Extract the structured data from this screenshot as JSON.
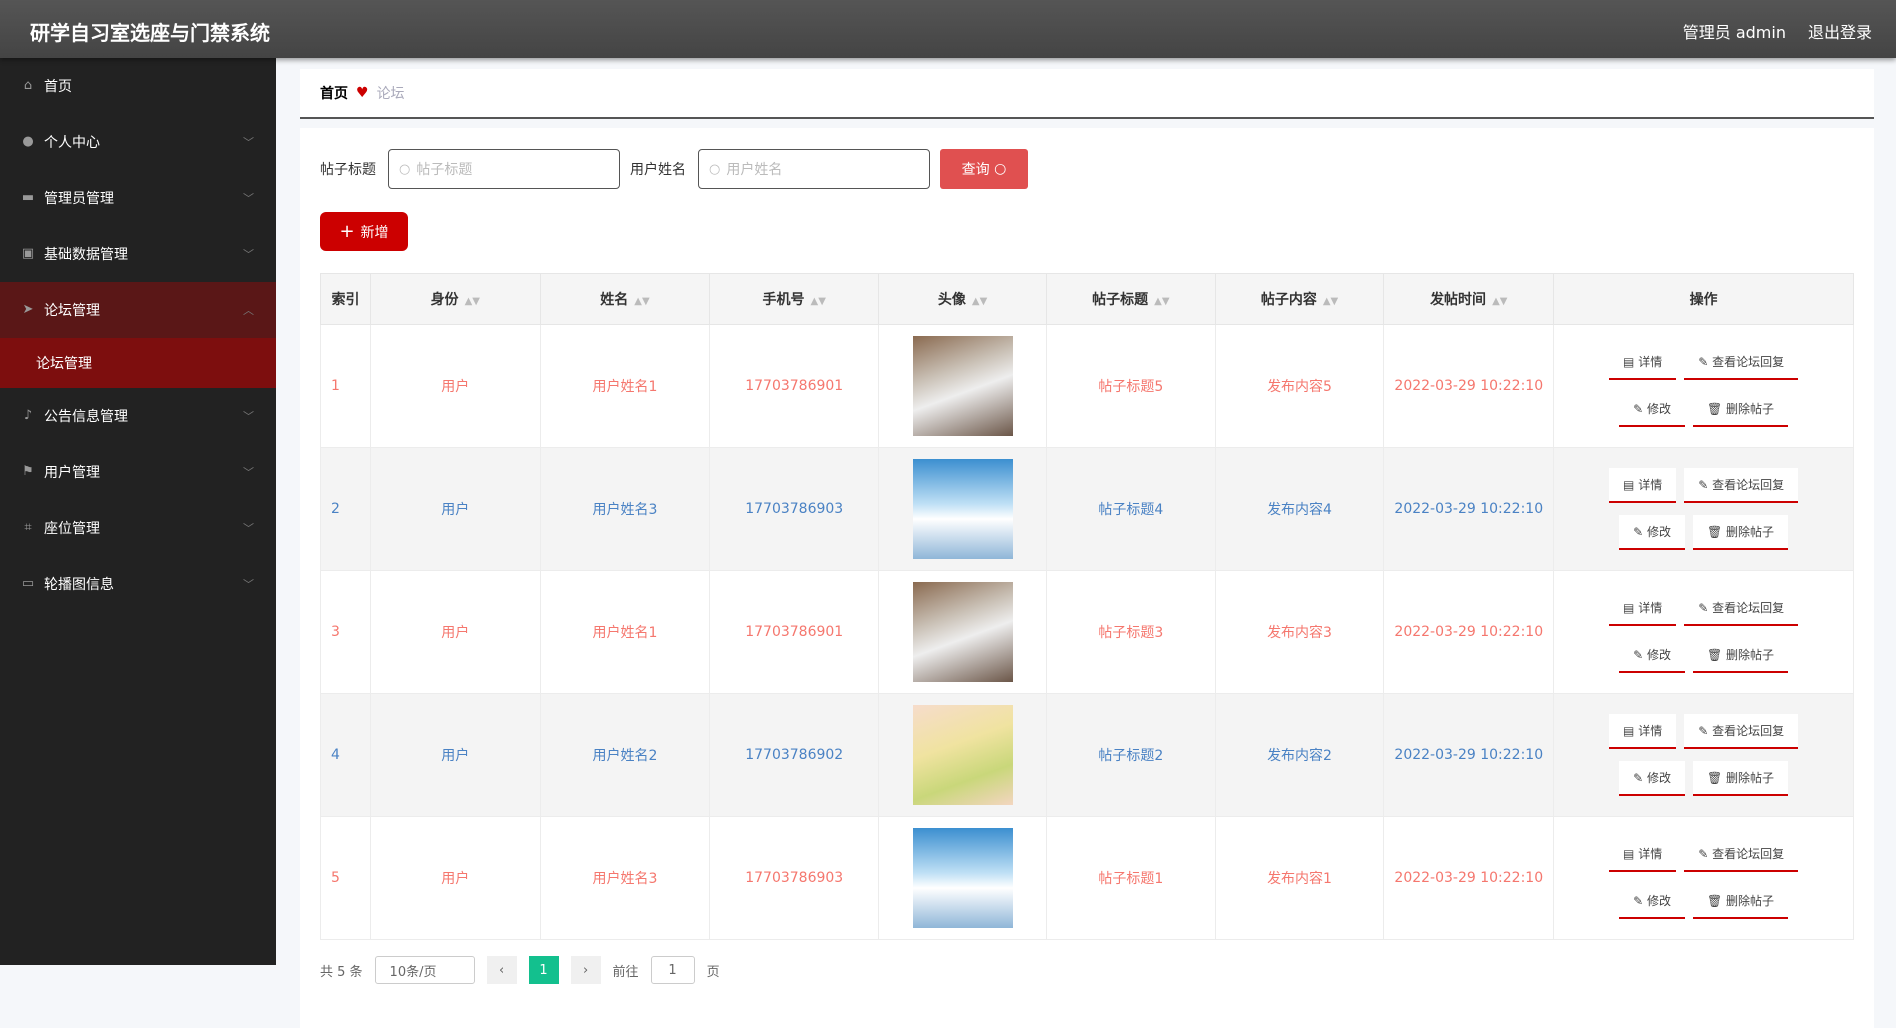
{
  "header": {
    "title": "研学自习室选座与门禁系统",
    "user": "管理员 admin",
    "logout": "退出登录"
  },
  "sidebar": {
    "items": [
      {
        "label": "首页",
        "icon": "home-icon"
      },
      {
        "label": "个人中心",
        "icon": "user-icon"
      },
      {
        "label": "管理员管理",
        "icon": "monitor-icon"
      },
      {
        "label": "基础数据管理",
        "icon": "clipboard-icon"
      },
      {
        "label": "论坛管理",
        "icon": "send-icon",
        "open": true
      },
      {
        "label": "公告信息管理",
        "icon": "mic-icon"
      },
      {
        "label": "用户管理",
        "icon": "flag-icon"
      },
      {
        "label": "座位管理",
        "icon": "crop-icon"
      },
      {
        "label": "轮播图信息",
        "icon": "screen-icon"
      }
    ],
    "submenu": "论坛管理"
  },
  "breadcrumb": {
    "home": "首页",
    "current": "论坛"
  },
  "search": {
    "title_label": "帖子标题",
    "title_placeholder": "帖子标题",
    "name_label": "用户姓名",
    "name_placeholder": "用户姓名",
    "query": "查询"
  },
  "add_button": "新增",
  "table": {
    "columns": [
      "索引",
      "身份",
      "姓名",
      "手机号",
      "头像",
      "帖子标题",
      "帖子内容",
      "发帖时间",
      "操作"
    ],
    "actions": [
      "详情",
      "查看论坛回复",
      "修改",
      "删除帖子"
    ],
    "rows": [
      {
        "index": "1",
        "role": "用户",
        "name": "用户姓名1",
        "phone": "17703786901",
        "avatar": "cat",
        "title": "帖子标题5",
        "content": "发布内容5",
        "time": "2022-03-29 10:22:10"
      },
      {
        "index": "2",
        "role": "用户",
        "name": "用户姓名3",
        "phone": "17703786903",
        "avatar": "boy",
        "title": "帖子标题4",
        "content": "发布内容4",
        "time": "2022-03-29 10:22:10"
      },
      {
        "index": "3",
        "role": "用户",
        "name": "用户姓名1",
        "phone": "17703786901",
        "avatar": "cat",
        "title": "帖子标题3",
        "content": "发布内容3",
        "time": "2022-03-29 10:22:10"
      },
      {
        "index": "4",
        "role": "用户",
        "name": "用户姓名2",
        "phone": "17703786902",
        "avatar": "girl",
        "title": "帖子标题2",
        "content": "发布内容2",
        "time": "2022-03-29 10:22:10"
      },
      {
        "index": "5",
        "role": "用户",
        "name": "用户姓名3",
        "phone": "17703786903",
        "avatar": "boy",
        "title": "帖子标题1",
        "content": "发布内容1",
        "time": "2022-03-29 10:22:10"
      }
    ]
  },
  "pagination": {
    "total": "共 5 条",
    "page_size": "10条/页",
    "current": "1",
    "goto": "前往",
    "goto_value": "1",
    "page_unit": "页"
  },
  "colors": {
    "accent": "#cc0000",
    "odd_text": "#f5776e",
    "even_text": "#4a82c4",
    "active_page": "#13c08e"
  }
}
